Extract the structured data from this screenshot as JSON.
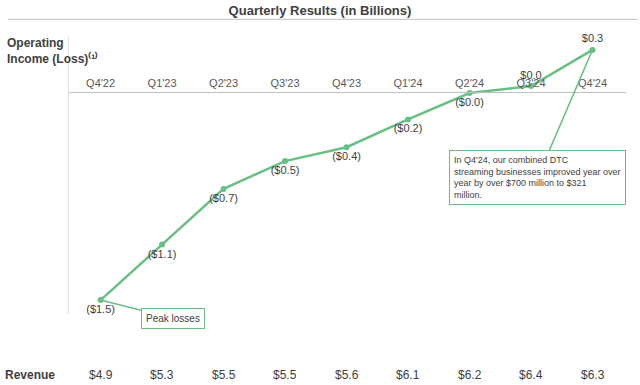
{
  "chart_data": {
    "type": "line",
    "title": "Quarterly Results (in Billions)",
    "y_label": [
      "Operating",
      "Income (Loss)⁽¹⁾"
    ],
    "categories": [
      "Q4'22",
      "Q1'23",
      "Q2'23",
      "Q3'23",
      "Q4'23",
      "Q1'24",
      "Q2'24",
      "Q3'24",
      "Q4'24"
    ],
    "values": [
      -1.5,
      -1.1,
      -0.7,
      -0.5,
      -0.4,
      -0.2,
      -0.01,
      0.04,
      0.3
    ],
    "value_labels": [
      "($1.5)",
      "($1.1)",
      "($0.7)",
      "($0.5)",
      "($0.4)",
      "($0.2)",
      "($0.0)",
      "$0.0",
      "$0.3"
    ],
    "data_labels": true,
    "color": "#6abf85",
    "marker": "circle",
    "line_style": "solid",
    "ylim": [
      -1.6,
      0.4
    ],
    "yticks": [],
    "tick_labels": "x",
    "grid": false,
    "annotations": [
      {
        "text": [
          "Peak losses"
        ],
        "category": "Q4'22"
      },
      {
        "text": [
          "In Q4'24, our combined DTC",
          "streaming businesses improved year over",
          "year by over $700 million to $321",
          "million."
        ],
        "category": "Q4'24"
      }
    ],
    "revenue": {
      "label": "Revenue",
      "values": [
        4.9,
        5.3,
        5.5,
        5.5,
        5.6,
        6.1,
        6.2,
        6.4,
        6.3
      ],
      "value_labels": [
        "$4.9",
        "$5.3",
        "$5.5",
        "$5.5",
        "$5.6",
        "$6.1",
        "$6.2",
        "$6.4",
        "$6.3"
      ]
    }
  }
}
